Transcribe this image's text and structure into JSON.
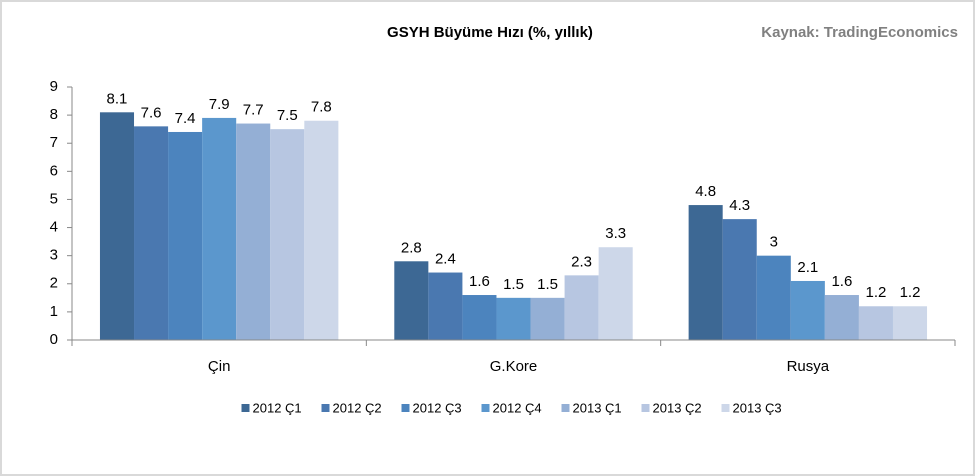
{
  "chart_data": {
    "type": "bar",
    "title": "GSYH Büyüme Hızı (%, yıllık)",
    "source": "Kaynak: TradingEconomics",
    "categories": [
      "Çin",
      "G.Kore",
      "Rusya"
    ],
    "series": [
      {
        "name": "2012 Ç1",
        "color": "#3d6894",
        "values": [
          8.1,
          2.8,
          4.8
        ]
      },
      {
        "name": "2012 Ç2",
        "color": "#4a78b0",
        "values": [
          7.6,
          2.4,
          4.3
        ]
      },
      {
        "name": "2012 Ç3",
        "color": "#4c84be",
        "values": [
          7.4,
          1.6,
          3
        ]
      },
      {
        "name": "2012 Ç4",
        "color": "#5b97cd",
        "values": [
          7.9,
          1.5,
          2.1
        ]
      },
      {
        "name": "2013 Ç1",
        "color": "#94afd5",
        "values": [
          7.7,
          1.5,
          1.6
        ]
      },
      {
        "name": "2013 Ç2",
        "color": "#b7c6e1",
        "values": [
          7.5,
          2.3,
          1.2
        ]
      },
      {
        "name": "2013 Ç3",
        "color": "#cdd7e9",
        "values": [
          7.8,
          3.3,
          1.2
        ]
      }
    ],
    "ylim": [
      0,
      9
    ],
    "yticks": [
      0,
      1,
      2,
      3,
      4,
      5,
      6,
      7,
      8,
      9
    ],
    "grid": false,
    "legend": "bottom"
  }
}
